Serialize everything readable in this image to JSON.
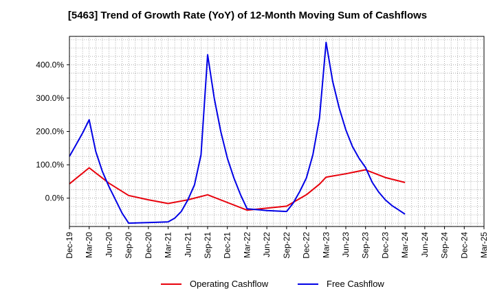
{
  "chart_data": {
    "type": "line",
    "title": "[5463]  Trend of Growth Rate (YoY) of 12-Month Moving Sum of Cashflows",
    "xlabel": "",
    "ylabel": "",
    "x_tick_labels": [
      "Dec-19",
      "Mar-20",
      "Jun-20",
      "Sep-20",
      "Dec-20",
      "Mar-21",
      "Jun-21",
      "Sep-21",
      "Dec-21",
      "Mar-22",
      "Jun-22",
      "Sep-22",
      "Dec-22",
      "Mar-23",
      "Jun-23",
      "Sep-23",
      "Dec-23",
      "Mar-24",
      "Jun-24",
      "Sep-24",
      "Dec-24",
      "Mar-25"
    ],
    "y_ticks": [
      0,
      100,
      200,
      300,
      400
    ],
    "y_tick_labels": [
      "0.0%",
      "100.0%",
      "200.0%",
      "300.0%",
      "400.0%"
    ],
    "ylim": [
      -85,
      485
    ],
    "grid": true,
    "legend_position": "bottom",
    "series": [
      {
        "name": "Operating Cashflow",
        "color": "#e8000b",
        "points": [
          [
            "Dec-19",
            43
          ],
          [
            "Mar-20",
            91
          ],
          [
            "Jun-20",
            45
          ],
          [
            "Sep-20",
            8
          ],
          [
            "Dec-20",
            -5
          ],
          [
            "Mar-21",
            -16
          ],
          [
            "Jun-21",
            -5
          ],
          [
            "Sep-21",
            10
          ],
          [
            "Dec-21",
            -13
          ],
          [
            "Mar-22",
            -36
          ],
          [
            "Jun-22",
            -30
          ],
          [
            "Sep-22",
            -24
          ],
          [
            "Dec-22",
            10
          ],
          [
            "Feb-23",
            42
          ],
          [
            "Mar-23",
            63
          ],
          [
            "Jun-23",
            73
          ],
          [
            "Sep-23",
            85
          ],
          [
            "Dec-23",
            62
          ],
          [
            "Mar-24",
            47
          ]
        ]
      },
      {
        "name": "Free Cashflow",
        "color": "#0000e6",
        "points": [
          [
            "Dec-19",
            125
          ],
          [
            "Jan-20",
            160
          ],
          [
            "Feb-20",
            195
          ],
          [
            "Mar-20",
            235
          ],
          [
            "Apr-20",
            140
          ],
          [
            "May-20",
            80
          ],
          [
            "Jun-20",
            35
          ],
          [
            "Jul-20",
            -5
          ],
          [
            "Aug-20",
            -45
          ],
          [
            "Sep-20",
            -75
          ],
          [
            "Dec-20",
            -73
          ],
          [
            "Mar-21",
            -71
          ],
          [
            "Apr-21",
            -60
          ],
          [
            "May-21",
            -40
          ],
          [
            "Jun-21",
            -5
          ],
          [
            "Jul-21",
            40
          ],
          [
            "Aug-21",
            130
          ],
          [
            "Sep-21",
            430
          ],
          [
            "Oct-21",
            300
          ],
          [
            "Nov-21",
            200
          ],
          [
            "Dec-21",
            120
          ],
          [
            "Jan-22",
            60
          ],
          [
            "Feb-22",
            10
          ],
          [
            "Mar-22",
            -32
          ],
          [
            "Jun-22",
            -37
          ],
          [
            "Sep-22",
            -40
          ],
          [
            "Oct-22",
            -15
          ],
          [
            "Nov-22",
            20
          ],
          [
            "Dec-22",
            60
          ],
          [
            "Jan-23",
            130
          ],
          [
            "Feb-23",
            240
          ],
          [
            "Mar-23",
            467
          ],
          [
            "Apr-23",
            350
          ],
          [
            "May-23",
            270
          ],
          [
            "Jun-23",
            205
          ],
          [
            "Jul-23",
            155
          ],
          [
            "Aug-23",
            120
          ],
          [
            "Sep-23",
            92
          ],
          [
            "Oct-23",
            48
          ],
          [
            "Nov-23",
            18
          ],
          [
            "Dec-23",
            -5
          ],
          [
            "Jan-24",
            -22
          ],
          [
            "Feb-24",
            -35
          ],
          [
            "Mar-24",
            -48
          ]
        ]
      }
    ]
  }
}
